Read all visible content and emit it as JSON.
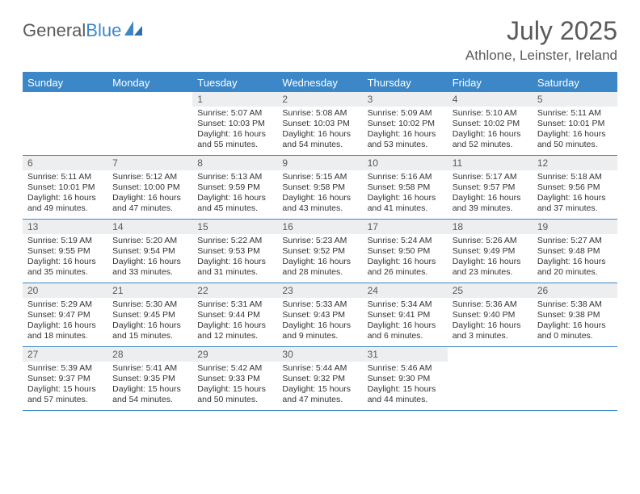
{
  "brand": {
    "part1": "General",
    "part2": "Blue"
  },
  "title": "July 2025",
  "subtitle": "Athlone, Leinster, Ireland",
  "colors": {
    "accent": "#3b87c8",
    "text": "#5a5a5a",
    "daybg": "#eceef0",
    "body": "#333333",
    "background": "#ffffff"
  },
  "days_of_week": [
    "Sunday",
    "Monday",
    "Tuesday",
    "Wednesday",
    "Thursday",
    "Friday",
    "Saturday"
  ],
  "first_weekday_index": 2,
  "days": [
    {
      "n": 1,
      "sunrise": "5:07 AM",
      "sunset": "10:03 PM",
      "daylight": "16 hours and 55 minutes."
    },
    {
      "n": 2,
      "sunrise": "5:08 AM",
      "sunset": "10:03 PM",
      "daylight": "16 hours and 54 minutes."
    },
    {
      "n": 3,
      "sunrise": "5:09 AM",
      "sunset": "10:02 PM",
      "daylight": "16 hours and 53 minutes."
    },
    {
      "n": 4,
      "sunrise": "5:10 AM",
      "sunset": "10:02 PM",
      "daylight": "16 hours and 52 minutes."
    },
    {
      "n": 5,
      "sunrise": "5:11 AM",
      "sunset": "10:01 PM",
      "daylight": "16 hours and 50 minutes."
    },
    {
      "n": 6,
      "sunrise": "5:11 AM",
      "sunset": "10:01 PM",
      "daylight": "16 hours and 49 minutes."
    },
    {
      "n": 7,
      "sunrise": "5:12 AM",
      "sunset": "10:00 PM",
      "daylight": "16 hours and 47 minutes."
    },
    {
      "n": 8,
      "sunrise": "5:13 AM",
      "sunset": "9:59 PM",
      "daylight": "16 hours and 45 minutes."
    },
    {
      "n": 9,
      "sunrise": "5:15 AM",
      "sunset": "9:58 PM",
      "daylight": "16 hours and 43 minutes."
    },
    {
      "n": 10,
      "sunrise": "5:16 AM",
      "sunset": "9:58 PM",
      "daylight": "16 hours and 41 minutes."
    },
    {
      "n": 11,
      "sunrise": "5:17 AM",
      "sunset": "9:57 PM",
      "daylight": "16 hours and 39 minutes."
    },
    {
      "n": 12,
      "sunrise": "5:18 AM",
      "sunset": "9:56 PM",
      "daylight": "16 hours and 37 minutes."
    },
    {
      "n": 13,
      "sunrise": "5:19 AM",
      "sunset": "9:55 PM",
      "daylight": "16 hours and 35 minutes."
    },
    {
      "n": 14,
      "sunrise": "5:20 AM",
      "sunset": "9:54 PM",
      "daylight": "16 hours and 33 minutes."
    },
    {
      "n": 15,
      "sunrise": "5:22 AM",
      "sunset": "9:53 PM",
      "daylight": "16 hours and 31 minutes."
    },
    {
      "n": 16,
      "sunrise": "5:23 AM",
      "sunset": "9:52 PM",
      "daylight": "16 hours and 28 minutes."
    },
    {
      "n": 17,
      "sunrise": "5:24 AM",
      "sunset": "9:50 PM",
      "daylight": "16 hours and 26 minutes."
    },
    {
      "n": 18,
      "sunrise": "5:26 AM",
      "sunset": "9:49 PM",
      "daylight": "16 hours and 23 minutes."
    },
    {
      "n": 19,
      "sunrise": "5:27 AM",
      "sunset": "9:48 PM",
      "daylight": "16 hours and 20 minutes."
    },
    {
      "n": 20,
      "sunrise": "5:29 AM",
      "sunset": "9:47 PM",
      "daylight": "16 hours and 18 minutes."
    },
    {
      "n": 21,
      "sunrise": "5:30 AM",
      "sunset": "9:45 PM",
      "daylight": "16 hours and 15 minutes."
    },
    {
      "n": 22,
      "sunrise": "5:31 AM",
      "sunset": "9:44 PM",
      "daylight": "16 hours and 12 minutes."
    },
    {
      "n": 23,
      "sunrise": "5:33 AM",
      "sunset": "9:43 PM",
      "daylight": "16 hours and 9 minutes."
    },
    {
      "n": 24,
      "sunrise": "5:34 AM",
      "sunset": "9:41 PM",
      "daylight": "16 hours and 6 minutes."
    },
    {
      "n": 25,
      "sunrise": "5:36 AM",
      "sunset": "9:40 PM",
      "daylight": "16 hours and 3 minutes."
    },
    {
      "n": 26,
      "sunrise": "5:38 AM",
      "sunset": "9:38 PM",
      "daylight": "16 hours and 0 minutes."
    },
    {
      "n": 27,
      "sunrise": "5:39 AM",
      "sunset": "9:37 PM",
      "daylight": "15 hours and 57 minutes."
    },
    {
      "n": 28,
      "sunrise": "5:41 AM",
      "sunset": "9:35 PM",
      "daylight": "15 hours and 54 minutes."
    },
    {
      "n": 29,
      "sunrise": "5:42 AM",
      "sunset": "9:33 PM",
      "daylight": "15 hours and 50 minutes."
    },
    {
      "n": 30,
      "sunrise": "5:44 AM",
      "sunset": "9:32 PM",
      "daylight": "15 hours and 47 minutes."
    },
    {
      "n": 31,
      "sunrise": "5:46 AM",
      "sunset": "9:30 PM",
      "daylight": "15 hours and 44 minutes."
    }
  ],
  "labels": {
    "sunrise": "Sunrise:",
    "sunset": "Sunset:",
    "daylight": "Daylight:"
  }
}
